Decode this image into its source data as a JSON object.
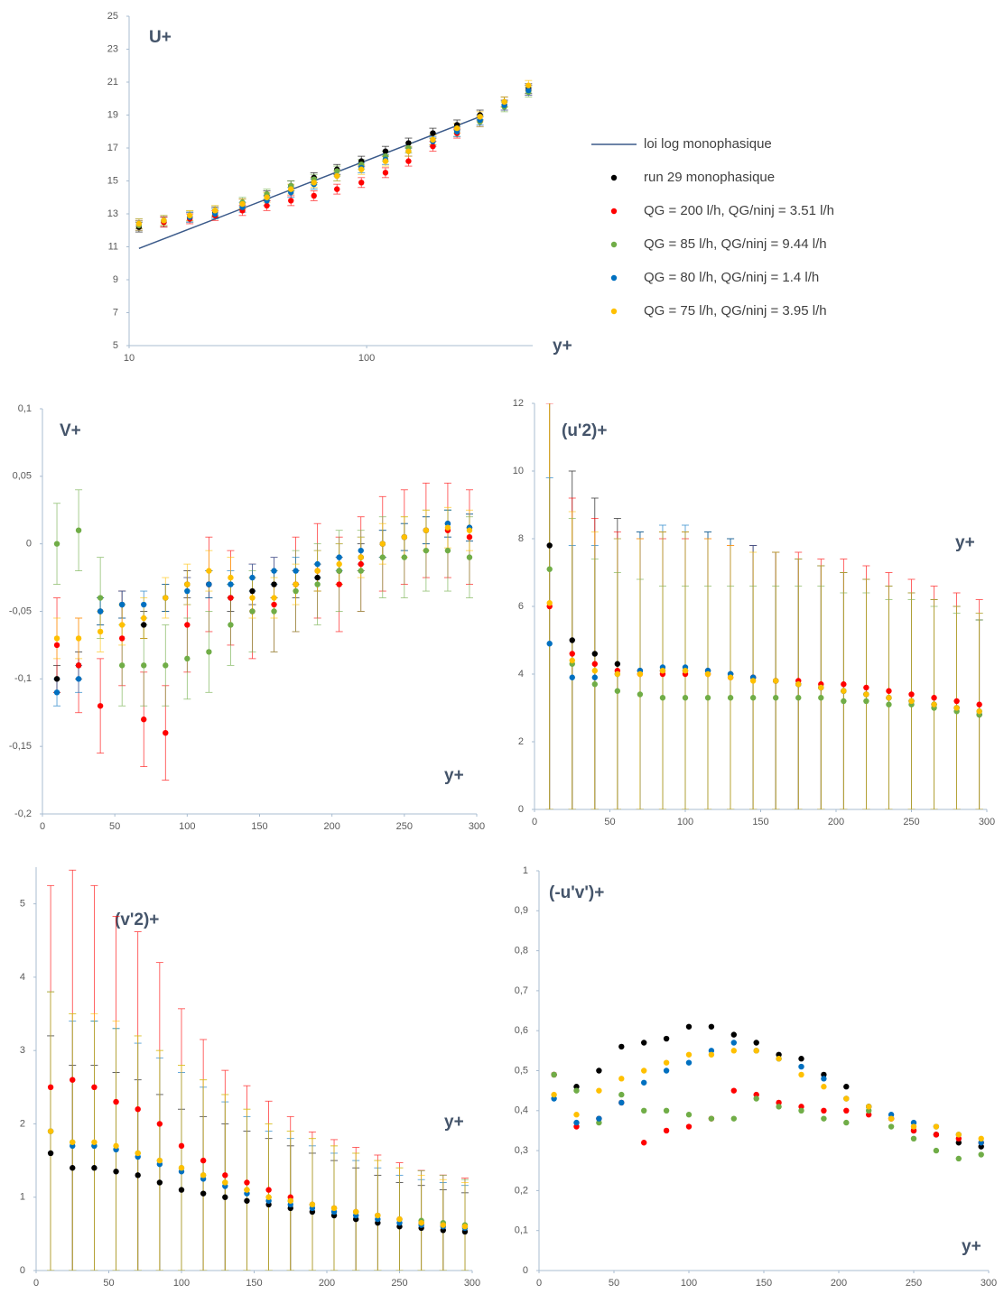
{
  "chart_data": [
    {
      "type": "scatter",
      "title": "U+",
      "xlabel": "y+",
      "xlog": true,
      "xlim": [
        10,
        500
      ],
      "xticks": [
        10,
        100
      ],
      "ylim": [
        5,
        25
      ],
      "yticks": [
        5,
        7,
        9,
        11,
        13,
        15,
        17,
        19,
        21,
        23,
        25
      ],
      "legend": "right",
      "series": [
        {
          "name": "loi log monophasique",
          "mode": "line",
          "color": "#3b5a8a",
          "x": [
            11,
            300
          ],
          "values": [
            10.9,
            18.9
          ]
        },
        {
          "name": "run 29 monophasique",
          "color": "#000000",
          "error": 0.3,
          "x": [
            11,
            14,
            18,
            23,
            30,
            38,
            48,
            60,
            75,
            95,
            120,
            150,
            190,
            240,
            300,
            380,
            480
          ],
          "values": [
            12.2,
            12.5,
            12.8,
            13.1,
            13.6,
            14.1,
            14.7,
            15.2,
            15.7,
            16.2,
            16.8,
            17.3,
            17.9,
            18.4,
            19.0,
            19.8,
            20.6
          ]
        },
        {
          "name": "QG = 200 l/h, QG/ninj = 3.51 l/h",
          "color": "#ff0000",
          "error": 0.3,
          "x": [
            11,
            14,
            18,
            23,
            30,
            38,
            48,
            60,
            75,
            95,
            120,
            150,
            190,
            240,
            300,
            380,
            480
          ],
          "values": [
            12.3,
            12.5,
            12.7,
            12.9,
            13.2,
            13.5,
            13.8,
            14.1,
            14.5,
            14.9,
            15.5,
            16.2,
            17.1,
            17.9,
            18.6,
            19.6,
            20.5
          ]
        },
        {
          "name": "QG = 85 l/h, QG/ninj = 9.44 l/h",
          "color": "#70ad47",
          "error": 0.3,
          "x": [
            11,
            14,
            18,
            23,
            30,
            38,
            48,
            60,
            75,
            95,
            120,
            150,
            190,
            240,
            300,
            380,
            480
          ],
          "values": [
            12.3,
            12.6,
            12.9,
            13.2,
            13.7,
            14.2,
            14.7,
            15.1,
            15.6,
            16.0,
            16.5,
            17.0,
            17.5,
            18.0,
            18.6,
            19.5,
            20.4
          ]
        },
        {
          "name": "QG = 80 l/h, QG/ninj = 1.4 l/h",
          "color": "#0070c0",
          "error": 0.3,
          "x": [
            11,
            14,
            18,
            23,
            30,
            38,
            48,
            60,
            75,
            95,
            120,
            150,
            190,
            240,
            300,
            380,
            480
          ],
          "values": [
            12.4,
            12.6,
            12.8,
            13.0,
            13.4,
            13.8,
            14.3,
            14.8,
            15.3,
            15.8,
            16.3,
            16.8,
            17.4,
            18.0,
            18.7,
            19.6,
            20.5
          ]
        },
        {
          "name": "QG = 75 l/h, QG/ninj = 3.95 l/h",
          "color": "#ffc000",
          "error": 0.3,
          "x": [
            11,
            14,
            18,
            23,
            30,
            38,
            48,
            60,
            75,
            95,
            120,
            150,
            190,
            240,
            300,
            380,
            480
          ],
          "values": [
            12.4,
            12.6,
            12.9,
            13.2,
            13.6,
            14.0,
            14.5,
            14.9,
            15.3,
            15.7,
            16.2,
            16.8,
            17.5,
            18.2,
            18.9,
            19.8,
            20.8
          ]
        }
      ]
    },
    {
      "type": "scatter",
      "title": "V+",
      "xlabel": "y+",
      "xlim": [
        0,
        300
      ],
      "xticks": [
        0,
        50,
        100,
        150,
        200,
        250,
        300
      ],
      "ylim": [
        -0.2,
        0.1
      ],
      "yticks": [
        {
          "value": -0.2,
          "label": "-0,2"
        },
        {
          "value": -0.15,
          "label": "-0,15"
        },
        {
          "value": -0.1,
          "label": "-0,1"
        },
        {
          "value": -0.05,
          "label": "-0,05"
        },
        0,
        {
          "value": 0.05,
          "label": "0,05"
        },
        {
          "value": 0.1,
          "label": "0,1"
        }
      ],
      "x": [
        10,
        25,
        40,
        55,
        70,
        85,
        100,
        115,
        130,
        145,
        160,
        175,
        190,
        205,
        220,
        235,
        250,
        265,
        280,
        295
      ],
      "series": [
        {
          "color": "#000000",
          "error": 0.01,
          "values": [
            -0.1,
            -0.09,
            -0.05,
            -0.045,
            -0.06,
            -0.04,
            -0.03,
            -0.03,
            -0.04,
            -0.035,
            -0.03,
            -0.03,
            -0.025,
            -0.02,
            -0.01,
            0.0,
            0.005,
            0.01,
            0.015,
            0.012
          ]
        },
        {
          "color": "#ff0000",
          "error": 0.035,
          "values": [
            -0.075,
            -0.09,
            -0.12,
            -0.07,
            -0.13,
            -0.14,
            -0.06,
            -0.03,
            -0.04,
            -0.05,
            -0.045,
            -0.03,
            -0.02,
            -0.03,
            -0.015,
            0.0,
            0.005,
            0.01,
            0.01,
            0.005
          ]
        },
        {
          "color": "#70ad47",
          "error": 0.03,
          "values": [
            0.0,
            0.01,
            -0.04,
            -0.09,
            -0.09,
            -0.09,
            -0.085,
            -0.08,
            -0.06,
            -0.05,
            -0.05,
            -0.035,
            -0.03,
            -0.02,
            -0.02,
            -0.01,
            -0.01,
            -0.005,
            -0.005,
            -0.01
          ]
        },
        {
          "color": "#0070c0",
          "error": 0.01,
          "values": [
            -0.11,
            -0.1,
            -0.05,
            -0.045,
            -0.045,
            -0.04,
            -0.035,
            -0.03,
            -0.03,
            -0.025,
            -0.02,
            -0.02,
            -0.015,
            -0.01,
            -0.005,
            0.0,
            0.005,
            0.01,
            0.015,
            0.012
          ]
        },
        {
          "color": "#ffc000",
          "error": 0.015,
          "values": [
            -0.07,
            -0.07,
            -0.065,
            -0.06,
            -0.055,
            -0.04,
            -0.03,
            -0.02,
            -0.025,
            -0.04,
            -0.04,
            -0.03,
            -0.02,
            -0.015,
            -0.01,
            0.0,
            0.005,
            0.01,
            0.012,
            0.01
          ]
        }
      ]
    },
    {
      "type": "scatter",
      "title": "(u'2)+",
      "xlabel": "y+",
      "xlim": [
        0,
        300
      ],
      "xticks": [
        0,
        50,
        100,
        150,
        200,
        250,
        300
      ],
      "ylim": [
        0,
        12
      ],
      "yticks": [
        0,
        2,
        4,
        6,
        8,
        10,
        12
      ],
      "x": [
        10,
        25,
        40,
        55,
        70,
        85,
        100,
        115,
        130,
        145,
        160,
        175,
        190,
        205,
        220,
        235,
        250,
        265,
        280,
        295
      ],
      "series": [
        {
          "color": "#000000",
          "error_percent": 100,
          "values": [
            7.8,
            5.0,
            4.6,
            4.3,
            4.1,
            4.1,
            4.1,
            4.1,
            4.0,
            3.9,
            3.8,
            3.7,
            3.6,
            3.5,
            3.4,
            3.3,
            3.2,
            3.1,
            3.0,
            2.8
          ]
        },
        {
          "color": "#ff0000",
          "error_percent": 100,
          "values": [
            6.0,
            4.6,
            4.3,
            4.1,
            4.0,
            4.0,
            4.0,
            4.0,
            3.9,
            3.9,
            3.8,
            3.8,
            3.7,
            3.7,
            3.6,
            3.5,
            3.4,
            3.3,
            3.2,
            3.1
          ]
        },
        {
          "color": "#70ad47",
          "error_percent": 100,
          "values": [
            7.1,
            4.3,
            3.7,
            3.5,
            3.4,
            3.3,
            3.3,
            3.3,
            3.3,
            3.3,
            3.3,
            3.3,
            3.3,
            3.2,
            3.2,
            3.1,
            3.1,
            3.0,
            2.9,
            2.8
          ]
        },
        {
          "color": "#0070c0",
          "error_percent": 100,
          "values": [
            4.9,
            3.9,
            3.9,
            4.0,
            4.1,
            4.2,
            4.2,
            4.1,
            4.0,
            3.9,
            3.8,
            3.7,
            3.6,
            3.5,
            3.4,
            3.3,
            3.2,
            3.1,
            3.0,
            2.9
          ]
        },
        {
          "color": "#ffc000",
          "error_percent": 100,
          "values": [
            6.1,
            4.4,
            4.1,
            4.0,
            4.0,
            4.1,
            4.1,
            4.0,
            3.9,
            3.8,
            3.8,
            3.7,
            3.6,
            3.5,
            3.4,
            3.3,
            3.2,
            3.1,
            3.0,
            2.9
          ]
        }
      ]
    },
    {
      "type": "scatter",
      "title": "(v'2)+",
      "xlabel": "y+",
      "xlim": [
        0,
        300
      ],
      "xticks": [
        0,
        50,
        100,
        150,
        200,
        250,
        300
      ],
      "ylim": [
        0,
        5.5
      ],
      "yticks": [
        0,
        1,
        2,
        3,
        4,
        5
      ],
      "x": [
        10,
        25,
        40,
        55,
        70,
        85,
        100,
        115,
        130,
        145,
        160,
        175,
        190,
        205,
        220,
        235,
        250,
        265,
        280,
        295
      ],
      "series": [
        {
          "color": "#000000",
          "error_percent": 100,
          "values": [
            1.6,
            1.4,
            1.4,
            1.35,
            1.3,
            1.2,
            1.1,
            1.05,
            1.0,
            0.95,
            0.9,
            0.85,
            0.8,
            0.75,
            0.7,
            0.65,
            0.6,
            0.58,
            0.55,
            0.53
          ]
        },
        {
          "color": "#ff0000",
          "error_percent": 110,
          "values": [
            2.5,
            2.6,
            2.5,
            2.3,
            2.2,
            2.0,
            1.7,
            1.5,
            1.3,
            1.2,
            1.1,
            1.0,
            0.9,
            0.85,
            0.8,
            0.75,
            0.7,
            0.65,
            0.62,
            0.6
          ]
        },
        {
          "color": "#70ad47",
          "error_percent": 100,
          "values": [
            1.9,
            1.75,
            1.7,
            1.65,
            1.6,
            1.5,
            1.4,
            1.3,
            1.2,
            1.1,
            1.0,
            0.95,
            0.9,
            0.85,
            0.8,
            0.75,
            0.7,
            0.68,
            0.65,
            0.62
          ]
        },
        {
          "color": "#0070c0",
          "error_percent": 100,
          "values": [
            1.9,
            1.7,
            1.7,
            1.65,
            1.55,
            1.45,
            1.35,
            1.25,
            1.15,
            1.05,
            0.95,
            0.9,
            0.85,
            0.8,
            0.75,
            0.7,
            0.65,
            0.62,
            0.6,
            0.58
          ]
        },
        {
          "color": "#ffc000",
          "error_percent": 100,
          "values": [
            1.9,
            1.75,
            1.75,
            1.7,
            1.6,
            1.5,
            1.4,
            1.3,
            1.2,
            1.1,
            1.0,
            0.95,
            0.9,
            0.85,
            0.8,
            0.75,
            0.7,
            0.65,
            0.62,
            0.6
          ]
        }
      ]
    },
    {
      "type": "scatter",
      "title": "(-u'v')+",
      "xlabel": "y+",
      "xlim": [
        0,
        300
      ],
      "xticks": [
        0,
        50,
        100,
        150,
        200,
        250,
        300
      ],
      "ylim": [
        0,
        1
      ],
      "yticks": [
        0,
        {
          "value": 0.1,
          "label": "0,1"
        },
        {
          "value": 0.2,
          "label": "0,2"
        },
        {
          "value": 0.3,
          "label": "0,3"
        },
        {
          "value": 0.4,
          "label": "0,4"
        },
        {
          "value": 0.5,
          "label": "0,5"
        },
        {
          "value": 0.6,
          "label": "0,6"
        },
        {
          "value": 0.7,
          "label": "0,7"
        },
        {
          "value": 0.8,
          "label": "0,8"
        },
        {
          "value": 0.9,
          "label": "0,9"
        },
        1
      ],
      "x": [
        10,
        25,
        40,
        55,
        70,
        85,
        100,
        115,
        130,
        145,
        160,
        175,
        190,
        205,
        220,
        235,
        250,
        265,
        280,
        295
      ],
      "series": [
        {
          "color": "#000000",
          "values": [
            0.49,
            0.46,
            0.5,
            0.56,
            0.57,
            0.58,
            0.61,
            0.61,
            0.59,
            0.57,
            0.54,
            0.53,
            0.49,
            0.46,
            0.41,
            0.38,
            0.35,
            0.34,
            0.32,
            0.31
          ]
        },
        {
          "color": "#ff0000",
          "values": [
            0.49,
            0.36,
            0.38,
            0.42,
            0.32,
            0.35,
            0.36,
            0.38,
            0.45,
            0.44,
            0.42,
            0.41,
            0.4,
            0.4,
            0.39,
            0.38,
            0.35,
            0.34,
            0.33,
            0.32
          ]
        },
        {
          "color": "#70ad47",
          "values": [
            0.49,
            0.45,
            0.37,
            0.44,
            0.4,
            0.4,
            0.39,
            0.38,
            0.38,
            0.43,
            0.41,
            0.4,
            0.38,
            0.37,
            0.4,
            0.36,
            0.33,
            0.3,
            0.28,
            0.29
          ]
        },
        {
          "color": "#0070c0",
          "values": [
            0.43,
            0.37,
            0.38,
            0.42,
            0.47,
            0.5,
            0.52,
            0.55,
            0.57,
            0.55,
            0.53,
            0.51,
            0.48,
            0.43,
            0.41,
            0.39,
            0.37,
            0.36,
            0.34,
            0.32
          ]
        },
        {
          "color": "#ffc000",
          "values": [
            0.44,
            0.39,
            0.45,
            0.48,
            0.5,
            0.52,
            0.54,
            0.54,
            0.55,
            0.55,
            0.53,
            0.49,
            0.46,
            0.43,
            0.41,
            0.38,
            0.36,
            0.36,
            0.34,
            0.33
          ]
        }
      ]
    }
  ]
}
